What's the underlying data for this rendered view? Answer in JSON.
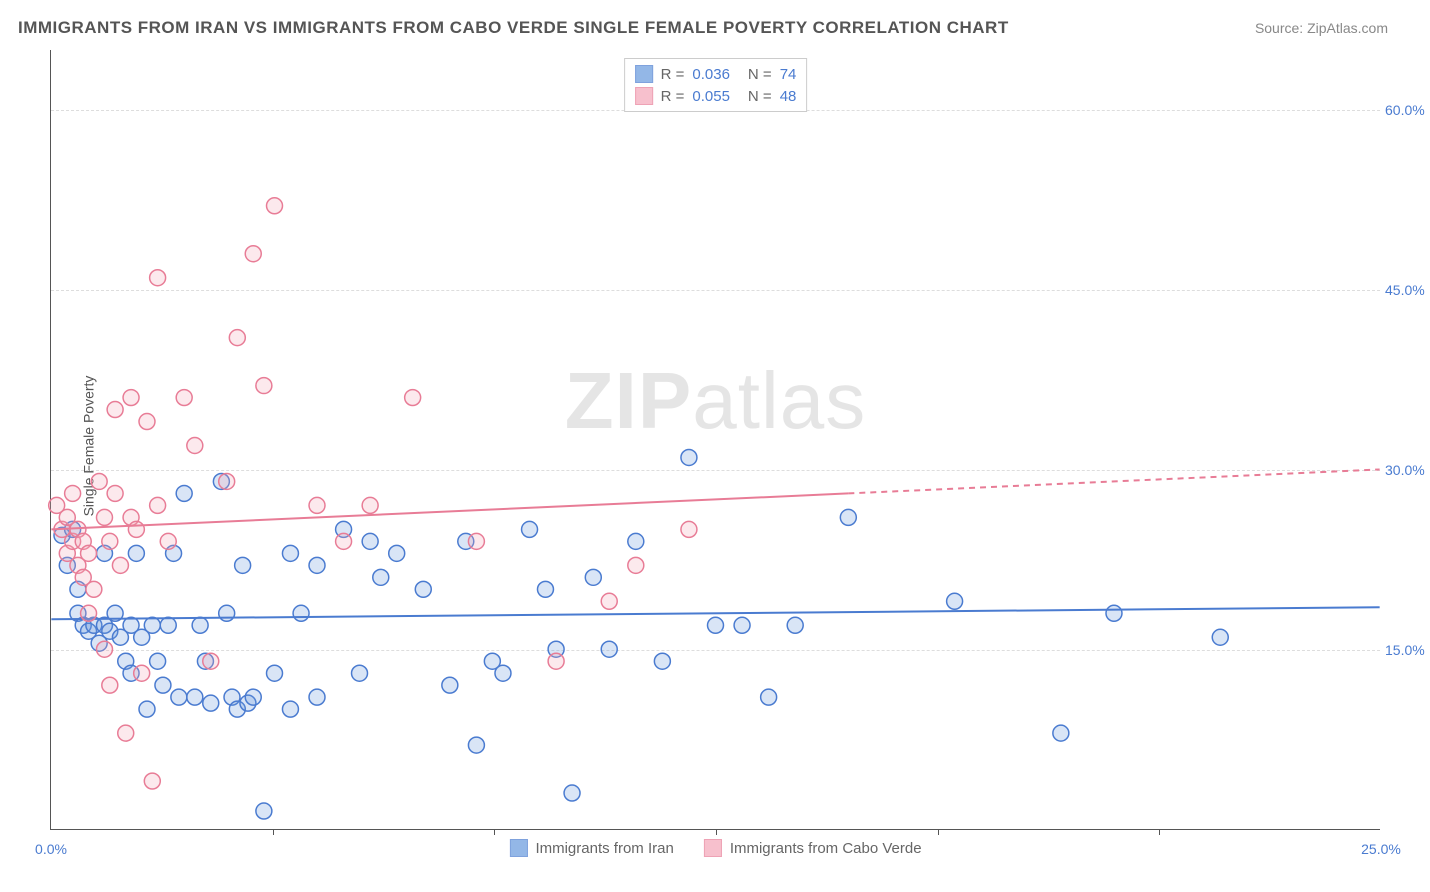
{
  "title": "IMMIGRANTS FROM IRAN VS IMMIGRANTS FROM CABO VERDE SINGLE FEMALE POVERTY CORRELATION CHART",
  "source": "Source: ZipAtlas.com",
  "y_axis_label": "Single Female Poverty",
  "watermark_bold": "ZIP",
  "watermark_rest": "atlas",
  "chart": {
    "type": "scatter",
    "background_color": "#ffffff",
    "grid_color": "#dddddd",
    "axis_color": "#555555",
    "text_color": "#555555",
    "value_color": "#4a7bd0",
    "title_fontsize": 17,
    "label_fontsize": 14,
    "xlim": [
      0,
      25
    ],
    "ylim": [
      0,
      65
    ],
    "x_ticks": [
      0,
      25
    ],
    "x_tick_labels": [
      "0.0%",
      "25.0%"
    ],
    "x_minor_ticks": [
      4.17,
      8.33,
      12.5,
      16.67,
      20.83
    ],
    "y_ticks": [
      15,
      30,
      45,
      60
    ],
    "y_tick_labels": [
      "15.0%",
      "30.0%",
      "45.0%",
      "60.0%"
    ],
    "marker_radius": 8,
    "marker_stroke_width": 1.5,
    "marker_fill_opacity": 0.25,
    "line_width": 2,
    "series": [
      {
        "name": "Immigrants from Iran",
        "color": "#6699dd",
        "stroke": "#4a7bd0",
        "r_value": "0.036",
        "n_value": "74",
        "trend": {
          "x1": 0,
          "y1": 17.5,
          "x2": 25,
          "y2": 18.5,
          "solid_until_x": 25
        },
        "points": [
          [
            0.2,
            24.5
          ],
          [
            0.3,
            22
          ],
          [
            0.4,
            25
          ],
          [
            0.5,
            20
          ],
          [
            0.5,
            18
          ],
          [
            0.6,
            17
          ],
          [
            0.7,
            16.5
          ],
          [
            0.8,
            17
          ],
          [
            0.9,
            15.5
          ],
          [
            1.0,
            23
          ],
          [
            1.0,
            17
          ],
          [
            1.1,
            16.5
          ],
          [
            1.2,
            18
          ],
          [
            1.3,
            16
          ],
          [
            1.4,
            14
          ],
          [
            1.5,
            17
          ],
          [
            1.5,
            13
          ],
          [
            1.6,
            23
          ],
          [
            1.7,
            16
          ],
          [
            1.8,
            10
          ],
          [
            1.9,
            17
          ],
          [
            2.0,
            14
          ],
          [
            2.1,
            12
          ],
          [
            2.2,
            17
          ],
          [
            2.3,
            23
          ],
          [
            2.4,
            11
          ],
          [
            2.5,
            28
          ],
          [
            2.7,
            11
          ],
          [
            2.8,
            17
          ],
          [
            2.9,
            14
          ],
          [
            3.0,
            10.5
          ],
          [
            3.2,
            29
          ],
          [
            3.3,
            18
          ],
          [
            3.4,
            11
          ],
          [
            3.5,
            10
          ],
          [
            3.6,
            22
          ],
          [
            3.7,
            10.5
          ],
          [
            3.8,
            11
          ],
          [
            4.0,
            1.5
          ],
          [
            4.2,
            13
          ],
          [
            4.5,
            23
          ],
          [
            4.5,
            10
          ],
          [
            4.7,
            18
          ],
          [
            5.0,
            22
          ],
          [
            5.0,
            11
          ],
          [
            5.5,
            25
          ],
          [
            5.8,
            13
          ],
          [
            6.0,
            24
          ],
          [
            6.2,
            21
          ],
          [
            6.5,
            23
          ],
          [
            7.0,
            20
          ],
          [
            7.5,
            12
          ],
          [
            7.8,
            24
          ],
          [
            8.0,
            7
          ],
          [
            8.3,
            14
          ],
          [
            8.5,
            13
          ],
          [
            9.0,
            25
          ],
          [
            9.3,
            20
          ],
          [
            9.5,
            15
          ],
          [
            9.8,
            3
          ],
          [
            10.2,
            21
          ],
          [
            10.5,
            15
          ],
          [
            11.0,
            24
          ],
          [
            11.5,
            14
          ],
          [
            12.0,
            31
          ],
          [
            12.5,
            17
          ],
          [
            13.0,
            17
          ],
          [
            13.5,
            11
          ],
          [
            14.0,
            17
          ],
          [
            15.0,
            26
          ],
          [
            17.0,
            19
          ],
          [
            19.0,
            8
          ],
          [
            20.0,
            18
          ],
          [
            22.0,
            16
          ]
        ]
      },
      {
        "name": "Immigrants from Cabo Verde",
        "color": "#f4a6b8",
        "stroke": "#e87c96",
        "r_value": "0.055",
        "n_value": "48",
        "trend": {
          "x1": 0,
          "y1": 25,
          "x2": 25,
          "y2": 30,
          "solid_until_x": 15
        },
        "points": [
          [
            0.1,
            27
          ],
          [
            0.2,
            25
          ],
          [
            0.3,
            23
          ],
          [
            0.3,
            26
          ],
          [
            0.4,
            24
          ],
          [
            0.4,
            28
          ],
          [
            0.5,
            22
          ],
          [
            0.5,
            25
          ],
          [
            0.6,
            24
          ],
          [
            0.6,
            21
          ],
          [
            0.7,
            18
          ],
          [
            0.7,
            23
          ],
          [
            0.8,
            20
          ],
          [
            0.9,
            29
          ],
          [
            1.0,
            15
          ],
          [
            1.0,
            26
          ],
          [
            1.1,
            24
          ],
          [
            1.1,
            12
          ],
          [
            1.2,
            35
          ],
          [
            1.2,
            28
          ],
          [
            1.3,
            22
          ],
          [
            1.4,
            8
          ],
          [
            1.5,
            36
          ],
          [
            1.5,
            26
          ],
          [
            1.6,
            25
          ],
          [
            1.7,
            13
          ],
          [
            1.8,
            34
          ],
          [
            1.9,
            4
          ],
          [
            2.0,
            46
          ],
          [
            2.0,
            27
          ],
          [
            2.2,
            24
          ],
          [
            2.5,
            36
          ],
          [
            2.7,
            32
          ],
          [
            3.0,
            14
          ],
          [
            3.3,
            29
          ],
          [
            3.5,
            41
          ],
          [
            3.8,
            48
          ],
          [
            4.0,
            37
          ],
          [
            4.2,
            52
          ],
          [
            5.0,
            27
          ],
          [
            5.5,
            24
          ],
          [
            6.0,
            27
          ],
          [
            6.8,
            36
          ],
          [
            8.0,
            24
          ],
          [
            9.5,
            14
          ],
          [
            10.5,
            19
          ],
          [
            11.0,
            22
          ],
          [
            12.0,
            25
          ]
        ]
      }
    ]
  },
  "legend_bottom": [
    {
      "label": "Immigrants from Iran"
    },
    {
      "label": "Immigrants from Cabo Verde"
    }
  ]
}
